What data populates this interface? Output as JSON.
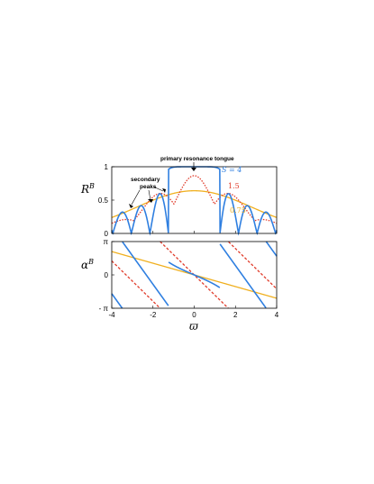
{
  "colors": {
    "s4": "#2f7fe0",
    "s15": "#e03b2a",
    "s075": "#f0b020",
    "frame": "#000000"
  },
  "chart_data": [
    {
      "type": "line",
      "ylabel_main": "R",
      "ylabel_sup": "B",
      "xlim": [
        -4,
        4
      ],
      "ylim": [
        0,
        1
      ],
      "xticks": [
        "-4",
        "-2",
        "0",
        "2",
        "4"
      ],
      "yticks": [
        "0",
        "0.5",
        "1"
      ],
      "series": [
        {
          "name": "S = 4",
          "label_text": "S = 4",
          "color": "#2f7fe0",
          "style": "solid",
          "S": 4
        },
        {
          "name": "1.5",
          "label_text": "1.5",
          "color": "#e03b2a",
          "style": "dotted",
          "S": 1.5
        },
        {
          "name": "0.75",
          "label_text": "0.75",
          "color": "#f0b020",
          "style": "solid",
          "S": 0.75
        }
      ],
      "annotations": {
        "primary": "primary resonance tongue",
        "secondary_line1": "secondary",
        "secondary_line2": "peaks"
      }
    },
    {
      "type": "line",
      "ylabel_main": "α",
      "ylabel_sup": "B",
      "xlabel": "ϖ",
      "xlim": [
        -4,
        4
      ],
      "ylim": [
        -3.14159,
        3.14159
      ],
      "xticks": [
        "-4",
        "-2",
        "0",
        "2",
        "4"
      ],
      "yticks": [
        "π",
        "0",
        "- π"
      ],
      "series": [
        {
          "name": "S = 4",
          "color": "#2f7fe0",
          "style": "solid",
          "S": 4
        },
        {
          "name": "1.5",
          "color": "#e03b2a",
          "style": "dashed",
          "S": 1.5
        },
        {
          "name": "0.75",
          "color": "#f0b020",
          "style": "solid",
          "S": 0.75
        }
      ]
    }
  ]
}
